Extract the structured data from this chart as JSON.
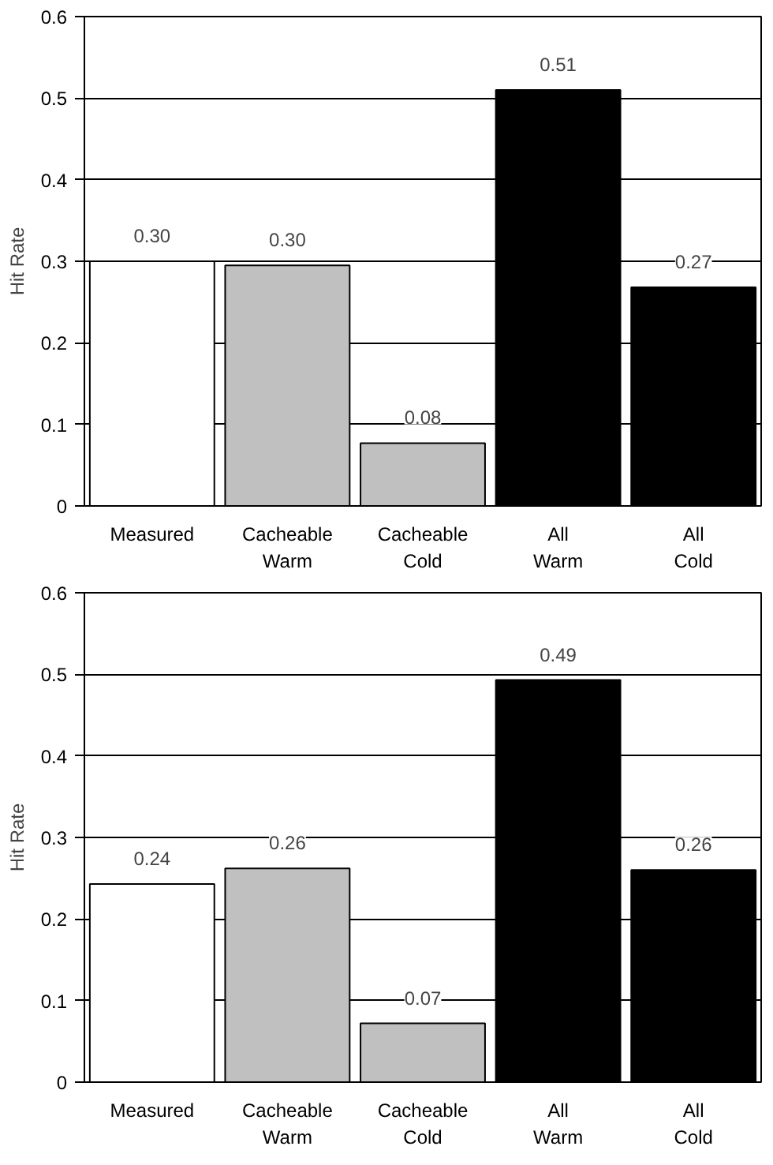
{
  "chart_data": [
    {
      "type": "bar",
      "ylabel": "Hit Rate",
      "categories": [
        "Measured",
        "Cacheable\nWarm",
        "Cacheable\nCold",
        "All\nWarm",
        "All\nCold"
      ],
      "values": [
        0.3,
        0.295,
        0.077,
        0.51,
        0.268
      ],
      "value_labels": [
        "0.30",
        "0.30",
        "0.08",
        "0.51",
        "0.27"
      ],
      "colors": [
        "#ffffff",
        "#c0c0c0",
        "#c0c0c0",
        "#000000",
        "#000000"
      ],
      "ylim": [
        0,
        0.6
      ],
      "yticks": [
        0,
        0.1,
        0.2,
        0.3,
        0.4,
        0.5,
        0.6
      ],
      "grid": "y"
    },
    {
      "type": "bar",
      "ylabel": "Hit Rate",
      "categories": [
        "Measured",
        "Cacheable\nWarm",
        "Cacheable\nCold",
        "All\nWarm",
        "All\nCold"
      ],
      "values": [
        0.243,
        0.262,
        0.072,
        0.493,
        0.26
      ],
      "value_labels": [
        "0.24",
        "0.26",
        "0.07",
        "0.49",
        "0.26"
      ],
      "colors": [
        "#ffffff",
        "#c0c0c0",
        "#c0c0c0",
        "#000000",
        "#000000"
      ],
      "ylim": [
        0,
        0.6
      ],
      "yticks": [
        0,
        0.1,
        0.2,
        0.3,
        0.4,
        0.5,
        0.6
      ],
      "grid": "y"
    }
  ]
}
